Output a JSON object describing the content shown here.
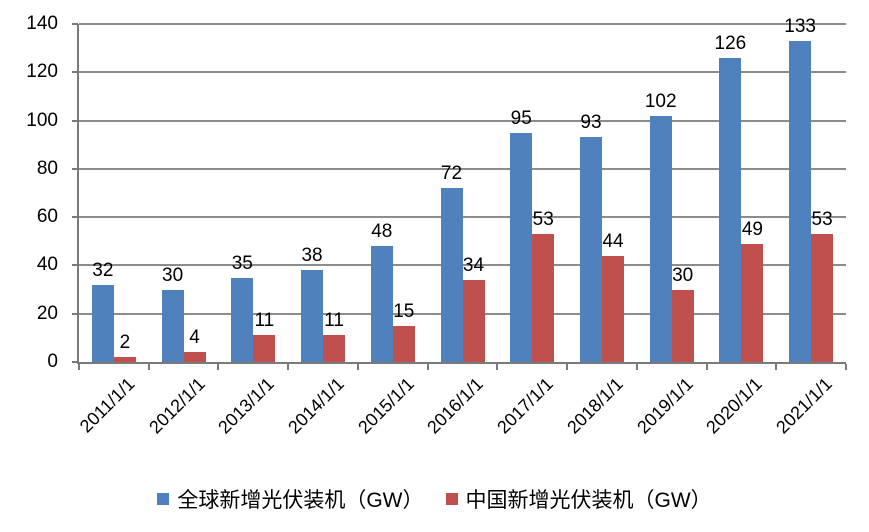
{
  "chart_data": {
    "type": "bar",
    "title": "",
    "xlabel": "",
    "ylabel": "",
    "categories": [
      "2011/1/1",
      "2012/1/1",
      "2013/1/1",
      "2014/1/1",
      "2015/1/1",
      "2016/1/1",
      "2017/1/1",
      "2018/1/1",
      "2019/1/1",
      "2020/1/1",
      "2021/1/1"
    ],
    "series": [
      {
        "name": "全球新增光伏装机（GW）",
        "color": "#4F81BD",
        "values": [
          32,
          30,
          35,
          38,
          48,
          72,
          95,
          93,
          102,
          126,
          133
        ]
      },
      {
        "name": "中国新增光伏装机（GW）",
        "color": "#C0504D",
        "values": [
          2,
          4,
          11,
          11,
          15,
          34,
          53,
          44,
          30,
          49,
          53
        ]
      }
    ],
    "ylim": [
      0,
      140
    ],
    "yticks": [
      0,
      20,
      40,
      60,
      80,
      100,
      120,
      140
    ],
    "grid": true,
    "data_labels": "outside-end",
    "legend_position": "bottom"
  },
  "colors": {
    "gridline": "#8C8C8C",
    "axis": "#7A7A7A",
    "label_text": "#000000",
    "background": "#FFFFFF"
  }
}
